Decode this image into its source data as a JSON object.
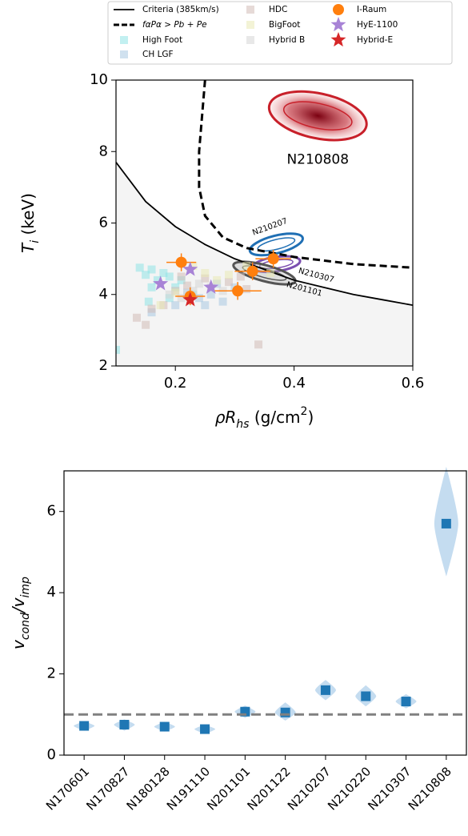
{
  "chart_data": [
    {
      "type": "scatter",
      "xlabel": [
        "ρR",
        "hs",
        " (g/cm",
        "2",
        ")"
      ],
      "ylabel": [
        "T",
        "i",
        " (keV)"
      ],
      "xlim": [
        0.1,
        0.6
      ],
      "ylim": [
        2,
        10
      ],
      "xticks": [
        0.2,
        0.4,
        0.6
      ],
      "yticks": [
        2,
        4,
        6,
        8,
        10
      ],
      "series": [
        {
          "name": "Criteria (385km/s)",
          "kind": "line",
          "color": "#000000",
          "fill_below": "#f4f4f4",
          "x": [
            0.1,
            0.15,
            0.2,
            0.25,
            0.3,
            0.35,
            0.4,
            0.45,
            0.5,
            0.55,
            0.6
          ],
          "values": [
            7.7,
            6.6,
            5.9,
            5.4,
            5.0,
            4.7,
            4.4,
            4.2,
            4.0,
            3.85,
            3.7
          ]
        },
        {
          "name": "fαPα > Pb + Pe",
          "kind": "dashed-line",
          "color": "#000000",
          "x": [
            0.25,
            0.245,
            0.24,
            0.24,
            0.25,
            0.28,
            0.32,
            0.4,
            0.5,
            0.6
          ],
          "values": [
            10,
            9,
            8,
            7,
            6.2,
            5.6,
            5.3,
            5.05,
            4.85,
            4.75
          ]
        },
        {
          "name": "High Foot",
          "kind": "square",
          "color": "#8fe3e6",
          "x": [
            0.14,
            0.15,
            0.16,
            0.17,
            0.18,
            0.19,
            0.2,
            0.16,
            0.155,
            0.21,
            0.23,
            0.19,
            0.1
          ],
          "values": [
            4.75,
            4.55,
            4.7,
            4.4,
            4.6,
            4.5,
            4.2,
            4.2,
            3.8,
            4.4,
            4.0,
            3.9,
            2.45
          ]
        },
        {
          "name": "CH LGF",
          "kind": "square",
          "color": "#a9c8e2",
          "x": [
            0.16,
            0.2,
            0.24,
            0.26,
            0.28,
            0.25,
            0.22,
            0.3,
            0.27
          ],
          "values": [
            3.5,
            3.7,
            3.9,
            4.0,
            3.8,
            3.7,
            4.05,
            4.2,
            4.3
          ]
        },
        {
          "name": "HDC",
          "kind": "square",
          "color": "#d2bcb6",
          "x": [
            0.135,
            0.15,
            0.16,
            0.18,
            0.2,
            0.22,
            0.25,
            0.29,
            0.32,
            0.34,
            0.31,
            0.21
          ],
          "values": [
            3.35,
            3.15,
            3.6,
            3.7,
            4.1,
            4.25,
            4.45,
            4.35,
            4.15,
            2.6,
            4.5,
            4.5
          ]
        },
        {
          "name": "BigFoot",
          "kind": "square",
          "color": "#e9e9b4",
          "x": [
            0.23,
            0.25,
            0.27,
            0.29,
            0.32,
            0.36,
            0.175,
            0.2
          ],
          "values": [
            4.8,
            4.6,
            4.4,
            4.55,
            4.8,
            4.6,
            3.7,
            4.05
          ]
        },
        {
          "name": "Hybrid B",
          "kind": "square",
          "color": "#d6d6d6",
          "x": [
            0.21,
            0.23,
            0.24,
            0.26,
            0.28,
            0.22,
            0.19
          ],
          "values": [
            3.9,
            4.1,
            4.3,
            4.2,
            4.1,
            4.0,
            4.0
          ]
        },
        {
          "name": "I-Raum",
          "kind": "circle",
          "color": "#ff7f0e",
          "x": [
            0.21,
            0.33,
            0.365,
            0.305,
            0.225
          ],
          "values": [
            4.9,
            4.65,
            5.0,
            4.1,
            3.95
          ],
          "xerr": [
            0.025,
            0.03,
            0.03,
            0.04,
            0.025
          ],
          "yerr": [
            0.25,
            0.25,
            0.25,
            0.25,
            0.25
          ]
        },
        {
          "name": "HyE-1100",
          "kind": "star",
          "color": "#a883d6",
          "x": [
            0.175,
            0.225,
            0.26
          ],
          "values": [
            4.3,
            4.7,
            4.2
          ]
        },
        {
          "name": "Hybrid-E",
          "kind": "star",
          "color": "#d62728",
          "x": [
            0.225
          ],
          "values": [
            3.85
          ]
        }
      ],
      "contours": [
        {
          "label": "N210808",
          "color": "#c8202a",
          "x": 0.44,
          "y": 9.0
        },
        {
          "label": "N210207",
          "color": "#1f6fb4",
          "x": 0.37,
          "y": 5.4
        },
        {
          "label": "N210307",
          "color": "#7b4fb0",
          "x": 0.37,
          "y": 4.85
        },
        {
          "label": "N201101",
          "color": "#555555",
          "x": 0.35,
          "y": 4.6
        }
      ]
    },
    {
      "type": "violin",
      "ylabel": [
        "v",
        "cond",
        "/v",
        "imp"
      ],
      "categories": [
        "N170601",
        "N170827",
        "N180128",
        "N191110",
        "N201101",
        "N201122",
        "N210207",
        "N210220",
        "N210307",
        "N210808"
      ],
      "values": [
        0.72,
        0.75,
        0.7,
        0.64,
        1.07,
        1.05,
        1.6,
        1.45,
        1.32,
        5.7
      ],
      "mins": [
        0.6,
        0.6,
        0.58,
        0.52,
        0.92,
        0.85,
        1.35,
        1.2,
        1.15,
        4.4
      ],
      "maxs": [
        0.83,
        0.88,
        0.82,
        0.75,
        1.22,
        1.3,
        1.85,
        1.72,
        1.5,
        7.1
      ],
      "color": "#1f77b4",
      "violin_color": "#b5d3ec",
      "hline": 1,
      "ylim": [
        0,
        7
      ],
      "yticks": [
        0,
        2,
        4,
        6
      ]
    }
  ]
}
